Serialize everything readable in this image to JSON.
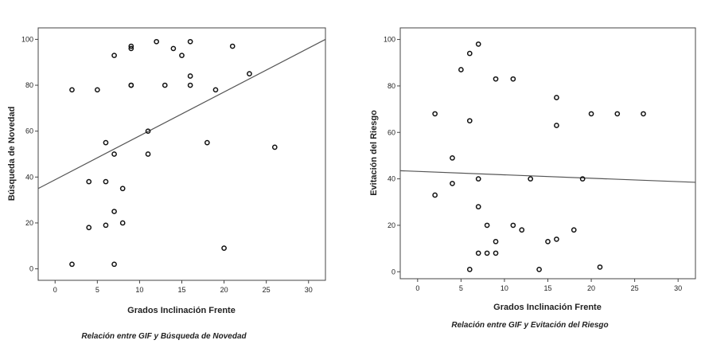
{
  "chart_data": [
    {
      "type": "scatter",
      "title": "",
      "caption": "Relación entre GIF y Búsqueda de Novedad",
      "xlabel": "Grados Inclinación Frente",
      "ylabel": "Búsqueda de Novedad",
      "xlim": [
        -2,
        32
      ],
      "ylim": [
        -5,
        105
      ],
      "xticks": [
        0,
        5,
        10,
        15,
        20,
        25,
        30
      ],
      "yticks": [
        0,
        20,
        40,
        60,
        80,
        100
      ],
      "grid": false,
      "fit_line": {
        "x": [
          -2,
          32
        ],
        "y": [
          35,
          100
        ]
      },
      "series": [
        {
          "x": [
            2,
            2,
            4,
            4,
            5,
            6,
            6,
            6,
            7,
            7,
            7,
            7,
            8,
            8,
            9,
            9,
            9,
            9,
            11,
            11,
            12,
            13,
            14,
            15,
            16,
            16,
            16,
            18,
            19,
            20,
            21,
            23,
            26
          ],
          "y": [
            78,
            2,
            38,
            18,
            78,
            55,
            38,
            19,
            93,
            50,
            25,
            2,
            35,
            20,
            97,
            96,
            80,
            80,
            60,
            50,
            99,
            80,
            96,
            93,
            99,
            84,
            80,
            55,
            78,
            9,
            97,
            85,
            53
          ]
        }
      ]
    },
    {
      "type": "scatter",
      "title": "",
      "caption": "Relación entre GIF y Evitación del Riesgo",
      "xlabel": "Grados Inclinación Frente",
      "ylabel": "Evitación del Riesgo",
      "xlim": [
        -2,
        32
      ],
      "ylim": [
        -3,
        105
      ],
      "xticks": [
        0,
        5,
        10,
        15,
        20,
        25,
        30
      ],
      "yticks": [
        0,
        20,
        40,
        60,
        80,
        100
      ],
      "grid": false,
      "fit_line": {
        "x": [
          -2,
          32
        ],
        "y": [
          43.5,
          38.5
        ]
      },
      "series": [
        {
          "x": [
            2,
            2,
            4,
            4,
            5,
            6,
            6,
            6,
            7,
            7,
            7,
            7,
            8,
            8,
            9,
            9,
            9,
            11,
            11,
            12,
            13,
            14,
            15,
            16,
            16,
            16,
            18,
            19,
            20,
            21,
            23,
            26
          ],
          "y": [
            68,
            33,
            49,
            38,
            87,
            94,
            65,
            1,
            98,
            40,
            28,
            8,
            20,
            8,
            83,
            13,
            8,
            83,
            20,
            18,
            40,
            1,
            13,
            75,
            63,
            14,
            18,
            40,
            68,
            2,
            68,
            68
          ]
        }
      ]
    }
  ]
}
